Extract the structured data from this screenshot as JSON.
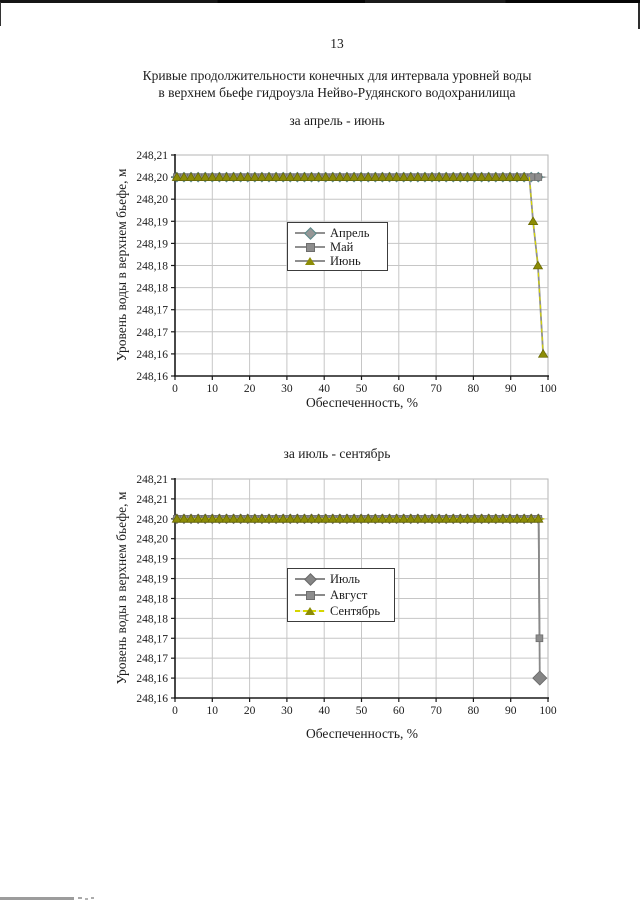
{
  "page": {
    "number": "13",
    "title_line1": "Кривые продолжительности конечных для интервала уровней воды",
    "title_line2": "в верхнем бьефе гидроузла Нейво-Рудянского водохранилища"
  },
  "chart_data": [
    {
      "type": "line",
      "title": "за апрель - июнь",
      "xlabel": "Обеспеченность, %",
      "ylabel": "Уровень воды в верхнем бьефе, м",
      "xlim": [
        0,
        100
      ],
      "xticks": [
        0,
        10,
        20,
        30,
        40,
        50,
        60,
        70,
        80,
        90,
        100
      ],
      "ytick_labels": [
        "248,21",
        "248,20",
        "248,20",
        "248,19",
        "248,19",
        "248,18",
        "248,18",
        "248,17",
        "248,17",
        "248,16",
        "248,16"
      ],
      "y_top_value": 248.205,
      "y_step": 0.005,
      "grid": true,
      "legend_position": "center",
      "series": [
        {
          "name": "Апрель",
          "marker": "diamond",
          "fill": "#979797",
          "stroke": "#598a8a",
          "line_color": "#909090",
          "level": 248.2,
          "flat_from": 0,
          "flat_to": 99.3,
          "marker_step": 1.9,
          "tail": []
        },
        {
          "name": "Май",
          "marker": "square",
          "fill": "#8d8d8d",
          "stroke": "#6e6e6e",
          "line_color": "#909090",
          "level": 248.2,
          "flat_from": 0,
          "flat_to": 98.4,
          "marker_step": 1.9,
          "tail": []
        },
        {
          "name": "Июнь",
          "marker": "triangle",
          "fill": "#8c8c06",
          "stroke": "#6a6a04",
          "line_color": "#8f8f8f",
          "tail_dash_color": "#d6d600",
          "level": 248.2,
          "flat_from": 0,
          "flat_to": 95,
          "marker_step": 1.9,
          "tail": [
            [
              96,
              248.19
            ],
            [
              97.3,
              248.18
            ],
            [
              98.7,
              248.16
            ]
          ]
        }
      ]
    },
    {
      "type": "line",
      "title": "за июль - сентябрь",
      "xlabel": "Обеспеченность, %",
      "ylabel": "Уровень воды в верхнем бьефе, м",
      "xlim": [
        0,
        100
      ],
      "xticks": [
        0,
        10,
        20,
        30,
        40,
        50,
        60,
        70,
        80,
        90,
        100
      ],
      "ytick_labels": [
        "248,21",
        "248,21",
        "248,20",
        "248,20",
        "248,19",
        "248,19",
        "248,18",
        "248,18",
        "248,17",
        "248,17",
        "248,16",
        "248,16"
      ],
      "y_top_value": 248.21,
      "y_step": 0.005,
      "grid": true,
      "legend_position": "center",
      "series": [
        {
          "name": "Июль",
          "marker": "diamond",
          "fill": "#858585",
          "stroke": "#686868",
          "line_color": "#8a8a8a",
          "level": 248.2,
          "flat_from": 0,
          "flat_to": 97.5,
          "marker_step": 1.9,
          "tail": [
            [
              97.8,
              248.16
            ]
          ],
          "tail_marker_size": 7
        },
        {
          "name": "Август",
          "marker": "square",
          "fill": "#8d8d8d",
          "stroke": "#6e6e6e",
          "line_color": "#8a8a8a",
          "level": 248.2,
          "flat_from": 0,
          "flat_to": 97.5,
          "marker_step": 1.9,
          "tail": [
            [
              97.7,
              248.17
            ]
          ]
        },
        {
          "name": "Сентябрь",
          "marker": "triangle",
          "fill": "#8c8c06",
          "stroke": "#6a6a04",
          "line_color": "#a9a920",
          "line_dash_color": "#d6d600",
          "level": 248.2,
          "flat_from": 0,
          "flat_to": 99,
          "marker_step": 1.9,
          "tail": []
        }
      ]
    }
  ]
}
